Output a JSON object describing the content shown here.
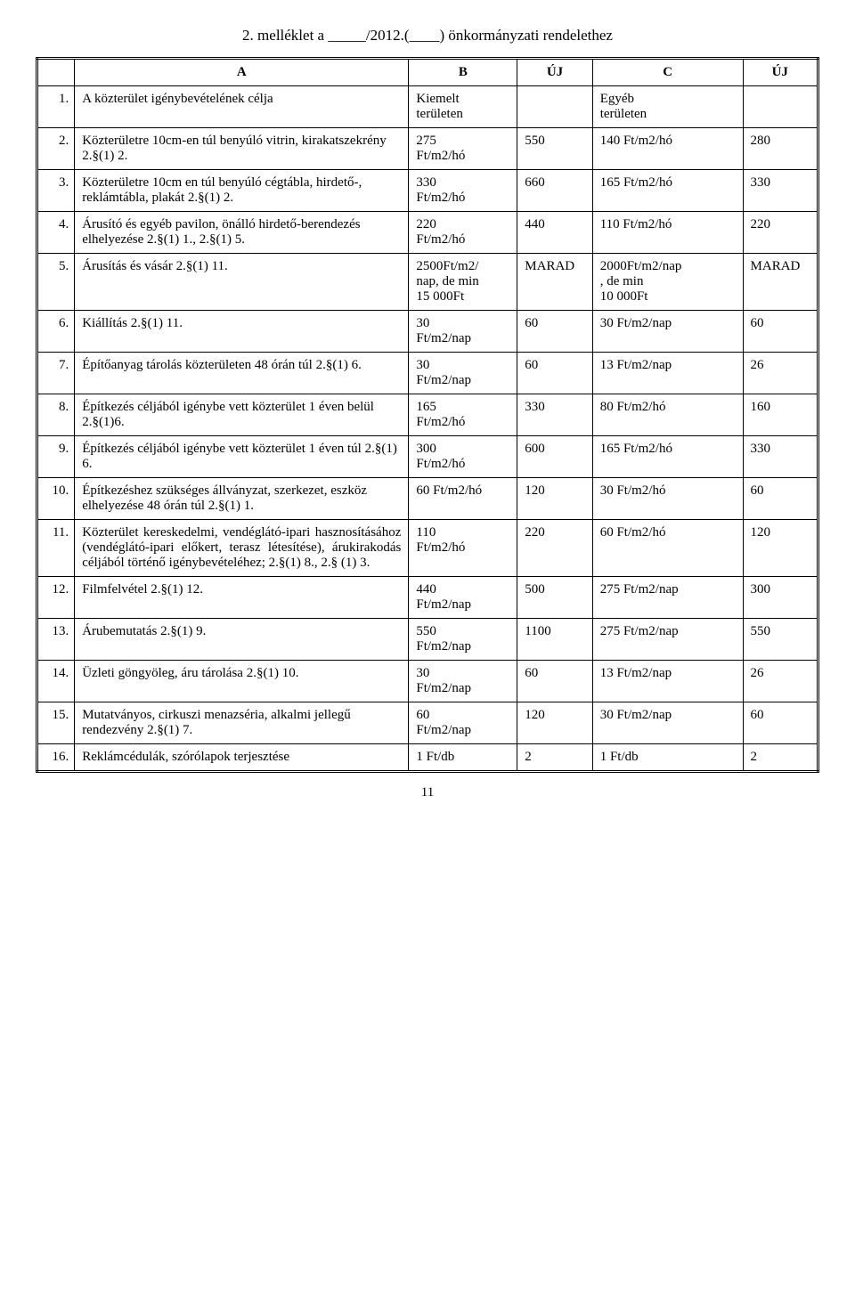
{
  "title": "2. melléklet a _____/2012.(____) önkormányzati rendelethez",
  "headers": {
    "a": "A",
    "b": "B",
    "uj1": "ÚJ",
    "c": "C",
    "uj2": "ÚJ"
  },
  "rows": [
    {
      "n": "1.",
      "desc": "A közterület igénybevételének célja",
      "b": "Kiemelt\nterületen",
      "uj1": "",
      "c": "Egyéb\nterületen",
      "uj2": ""
    },
    {
      "n": "2.",
      "desc": "Közterületre 10cm-en túl benyúló vitrin, kirakatszekrény 2.§(1) 2.",
      "b": "275\nFt/m2/hó",
      "uj1": "550",
      "c": "140 Ft/m2/hó",
      "uj2": "280"
    },
    {
      "n": "3.",
      "desc": "Közterületre 10cm en túl benyúló cégtábla, hirdető-, reklámtábla, plakát 2.§(1) 2.",
      "b": "330\nFt/m2/hó",
      "uj1": "660",
      "c": "165 Ft/m2/hó",
      "uj2": "330"
    },
    {
      "n": "4.",
      "desc": "Árusító és egyéb pavilon, önálló hirdető-berendezés  elhelyezése 2.§(1) 1., 2.§(1) 5.",
      "b": "220\nFt/m2/hó",
      "uj1": "440",
      "c": "110 Ft/m2/hó",
      "uj2": "220"
    },
    {
      "n": "5.",
      "desc": "Árusítás és vásár 2.§(1) 11.",
      "b": "2500Ft/m2/\nnap, de min\n15 000Ft",
      "uj1": "MARAD",
      "c": "2000Ft/m2/nap\n, de min\n10 000Ft",
      "uj2": "MARAD"
    },
    {
      "n": "6.",
      "desc": "Kiállítás 2.§(1) 11.",
      "b": "30\nFt/m2/nap",
      "uj1": "60",
      "c": "30 Ft/m2/nap",
      "uj2": "60"
    },
    {
      "n": "7.",
      "desc": "Építőanyag tárolás közterületen 48 órán túl 2.§(1) 6.",
      "b": "30\nFt/m2/nap",
      "uj1": "60",
      "c": "13 Ft/m2/nap",
      "uj2": "26"
    },
    {
      "n": "8.",
      "desc": "Építkezés céljából igénybe vett közterület 1 éven belül 2.§(1)6.",
      "b": "165\nFt/m2/hó",
      "uj1": "330",
      "c": "80 Ft/m2/hó",
      "uj2": "160"
    },
    {
      "n": "9.",
      "desc": "Építkezés céljából igénybe vett közterület 1 éven túl 2.§(1) 6.",
      "b": "300\nFt/m2/hó",
      "uj1": "600",
      "c": "165 Ft/m2/hó",
      "uj2": "330"
    },
    {
      "n": "10.",
      "desc": "Építkezéshez szükséges állványzat, szerkezet, eszköz elhelyezése 48 órán túl 2.§(1) 1.",
      "b": "60 Ft/m2/hó",
      "uj1": "120",
      "c": "30 Ft/m2/hó",
      "uj2": "60"
    },
    {
      "n": "11.",
      "desc": "Közterület kereskedelmi, vendéglátó-ipari hasznosításához (vendéglátó-ipari előkert, terasz létesítése), árukirakodás céljából történő igénybevételéhez; 2.§(1) 8., 2.§ (1) 3.",
      "b": "110\nFt/m2/hó",
      "uj1": "220",
      "c": "60 Ft/m2/hó",
      "uj2": "120",
      "justify": true
    },
    {
      "n": "12.",
      "desc": "Filmfelvétel 2.§(1) 12.",
      "b": "440\nFt/m2/nap",
      "uj1": "500",
      "c": "275 Ft/m2/nap",
      "uj2": "300"
    },
    {
      "n": "13.",
      "desc": "Árubemutatás 2.§(1) 9.",
      "b": "550\nFt/m2/nap",
      "uj1": "1100",
      "c": "275 Ft/m2/nap",
      "uj2": "550"
    },
    {
      "n": "14.",
      "desc": "Üzleti göngyöleg, áru tárolása 2.§(1) 10.",
      "b": "30\nFt/m2/nap",
      "uj1": "60",
      "c": "13 Ft/m2/nap",
      "uj2": "26"
    },
    {
      "n": "15.",
      "desc": "Mutatványos, cirkuszi menazséria, alkalmi jellegű rendezvény 2.§(1) 7.",
      "b": "60\nFt/m2/nap",
      "uj1": "120",
      "c": "30 Ft/m2/nap",
      "uj2": "60"
    },
    {
      "n": "16.",
      "desc": "Reklámcédulák, szórólapok terjesztése",
      "b": "1 Ft/db",
      "uj1": "2",
      "c": "1 Ft/db",
      "uj2": "2"
    }
  ],
  "pagenum": "11"
}
